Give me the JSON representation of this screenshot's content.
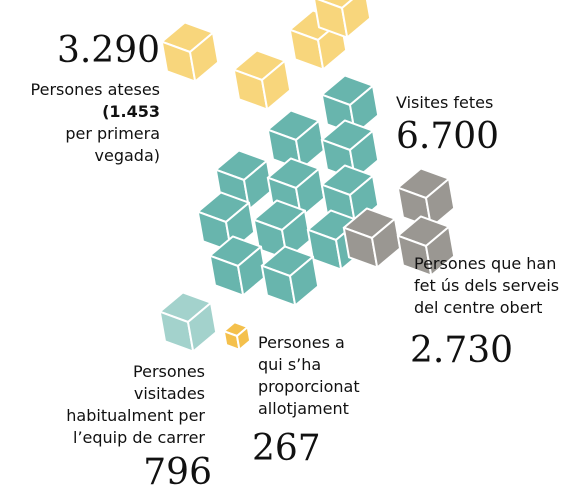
{
  "stats": [
    {
      "value": "3.290",
      "lines": [
        "Persones ateses"
      ],
      "bold": "(1.453",
      "more": [
        "per primera",
        "vegada)"
      ]
    },
    {
      "value": "6.700",
      "lines": [
        "Visites fetes"
      ]
    },
    {
      "value": "2.730",
      "lines": [
        "Persones que han",
        "fet ús dels serveis",
        "del centre obert"
      ]
    },
    {
      "value": "267",
      "lines": [
        "Persones a",
        "qui s’ha",
        "proporcionat",
        "allotjament"
      ]
    },
    {
      "value": "796",
      "lines": [
        "Persones",
        "visitades",
        "habitualment per",
        "l’equip de carrer"
      ]
    }
  ]
}
